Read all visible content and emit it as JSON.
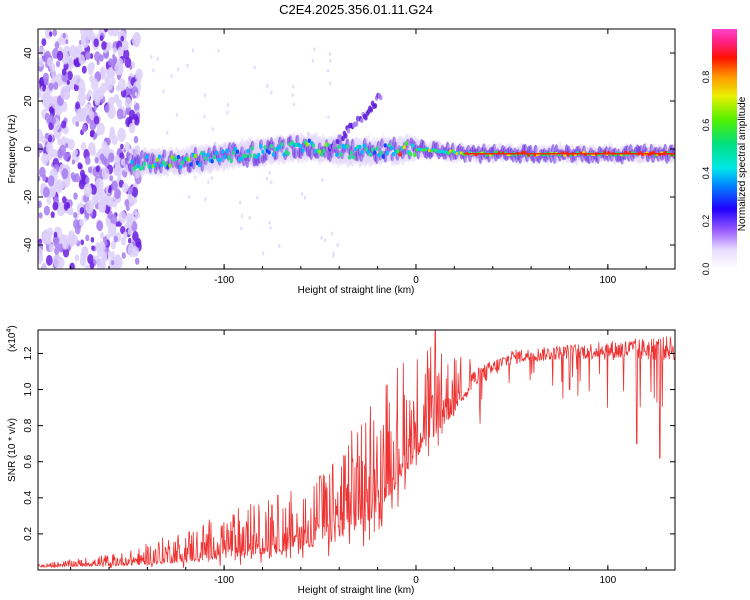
{
  "title": "C2E4.2025.356.01.11.G24",
  "spectrogram": {
    "type": "heatmap",
    "xlabel": "Height of straight line (km)",
    "ylabel": "Frequency (Hz)",
    "xlim": [
      -197,
      135
    ],
    "ylim": [
      -50,
      50
    ],
    "xticks": [
      {
        "value": -100,
        "label": "-100"
      },
      {
        "value": 0,
        "label": "0"
      },
      {
        "value": 100,
        "label": "100"
      }
    ],
    "yticks": [
      {
        "value": -40,
        "label": "-40"
      },
      {
        "value": -20,
        "label": "-20"
      },
      {
        "value": 0,
        "label": "0"
      },
      {
        "value": 20,
        "label": "20"
      },
      {
        "value": 40,
        "label": "40"
      }
    ],
    "noise_region_km": [
      -197,
      -150
    ],
    "ridge": [
      {
        "x": -150,
        "f": -6
      },
      {
        "x": -120,
        "f": -5
      },
      {
        "x": -90,
        "f": -2
      },
      {
        "x": -70,
        "f": 0
      },
      {
        "x": -55,
        "f": 1
      },
      {
        "x": -40,
        "f": -1
      },
      {
        "x": -20,
        "f": -1
      },
      {
        "x": 0,
        "f": 0
      },
      {
        "x": 30,
        "f": -2
      },
      {
        "x": 80,
        "f": -2
      },
      {
        "x": 135,
        "f": -2
      }
    ],
    "branch": [
      {
        "x": -45,
        "f": 0
      },
      {
        "x": -35,
        "f": 8
      },
      {
        "x": -25,
        "f": 15
      },
      {
        "x": -18,
        "f": 23
      }
    ]
  },
  "colorbar": {
    "label": "Normalized spectral amplitude",
    "ticks": [
      {
        "value": 0.0,
        "label": "0.0"
      },
      {
        "value": 0.2,
        "label": "0.2"
      },
      {
        "value": 0.4,
        "label": "0.4"
      },
      {
        "value": 0.6,
        "label": "0.6"
      },
      {
        "value": 0.8,
        "label": "0.8"
      }
    ],
    "range": [
      0,
      1
    ]
  },
  "chart_data": [
    {
      "type": "heatmap",
      "title": "C2E4.2025.356.01.11.G24",
      "xlabel": "Height of straight line (km)",
      "ylabel": "Frequency (Hz)",
      "xlim": [
        -197,
        135
      ],
      "ylim": [
        -50,
        50
      ],
      "colorbar_label": "Normalized spectral amplitude",
      "colorbar_range": [
        0,
        1
      ]
    },
    {
      "type": "line",
      "xlabel": "Height of straight line (km)",
      "ylabel": "SNR (10 * v/v)",
      "y_multiplier_label": "(x10",
      "y_multiplier_exp": "4",
      "y_multiplier_close": ")",
      "xlim": [
        -197,
        135
      ],
      "ylim": [
        0,
        1.33
      ],
      "xticks": [
        {
          "value": -100,
          "label": "-100"
        },
        {
          "value": 0,
          "label": "0"
        },
        {
          "value": 100,
          "label": "100"
        }
      ],
      "yticks": [
        {
          "value": 0.2,
          "label": "0.2"
        },
        {
          "value": 0.4,
          "label": "0.4"
        },
        {
          "value": 0.6,
          "label": "0.6"
        },
        {
          "value": 0.8,
          "label": "0.8"
        },
        {
          "value": 1.0,
          "label": "1.0"
        },
        {
          "value": 1.2,
          "label": "1.2"
        }
      ],
      "color": "#ee3333",
      "envelope": [
        {
          "x": -197,
          "base": 0.02,
          "amp": 0.01
        },
        {
          "x": -150,
          "base": 0.04,
          "amp": 0.05
        },
        {
          "x": -120,
          "base": 0.08,
          "amp": 0.12
        },
        {
          "x": -90,
          "base": 0.13,
          "amp": 0.18
        },
        {
          "x": -60,
          "base": 0.18,
          "amp": 0.22
        },
        {
          "x": -40,
          "base": 0.25,
          "amp": 0.3
        },
        {
          "x": -25,
          "base": 0.4,
          "amp": 0.45
        },
        {
          "x": -10,
          "base": 0.6,
          "amp": 0.45
        },
        {
          "x": 5,
          "base": 0.8,
          "amp": 0.35
        },
        {
          "x": 15,
          "base": 0.88,
          "amp": 0.25
        },
        {
          "x": 30,
          "base": 1.05,
          "amp": 0.12
        },
        {
          "x": 50,
          "base": 1.18,
          "amp": 0.08
        },
        {
          "x": 80,
          "base": 1.21,
          "amp": 0.08
        },
        {
          "x": 110,
          "base": 1.22,
          "amp": 0.12
        },
        {
          "x": 135,
          "base": 1.23,
          "amp": 0.14
        }
      ],
      "peaks": [
        {
          "x": 10,
          "y": 1.33
        },
        {
          "x": -75,
          "y": 0.36
        },
        {
          "x": -50,
          "y": 0.52
        }
      ],
      "dips": [
        {
          "x": 115,
          "y": 0.7
        },
        {
          "x": 127,
          "y": 0.62
        },
        {
          "x": 80,
          "y": 1.0
        }
      ]
    }
  ]
}
